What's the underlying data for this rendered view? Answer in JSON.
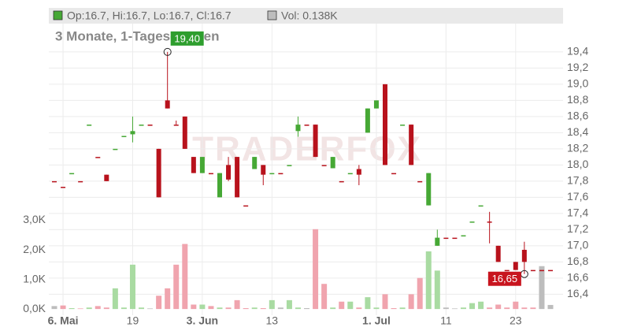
{
  "chart_data": {
    "type": "candlestick",
    "title": "3 Monate, 1-Tages-Kerzen",
    "ohlc_text": "Op:16.7, Hi:16.7, Lo:16.7, Cl:16.7",
    "volume_text": "Vol: 0.138K",
    "watermark": "TRADERFOX",
    "categories": [
      null,
      "6. Mai",
      null,
      null,
      null,
      null,
      null,
      null,
      null,
      "19",
      null,
      null,
      null,
      null,
      null,
      null,
      null,
      "3. Jun",
      null,
      null,
      null,
      null,
      null,
      null,
      null,
      "13",
      null,
      null,
      null,
      null,
      null,
      null,
      null,
      null,
      null,
      null,
      null,
      "1. Jul",
      null,
      null,
      null,
      null,
      null,
      null,
      null,
      "11",
      null,
      null,
      null,
      null,
      null,
      null,
      null,
      "23",
      null,
      null,
      null,
      null
    ],
    "open": [
      17.8,
      17.73,
      17.9,
      17.8,
      18.5,
      18.1,
      17.88,
      18.2,
      18.36,
      18.38,
      18.5,
      18.5,
      18.2,
      18.8,
      18.5,
      18.6,
      18.1,
      17.9,
      17.9,
      17.6,
      18.0,
      18.1,
      17.5,
      17.95,
      18.0,
      17.9,
      17.9,
      18.0,
      18.42,
      18.5,
      18.5,
      18.0,
      17.96,
      17.8,
      17.9,
      17.95,
      18.4,
      18.7,
      19.0,
      17.9,
      18.5,
      18.5,
      17.8,
      17.5,
      17.0,
      17.1,
      17.1,
      17.13,
      17.3,
      17.5,
      17.3,
      17.0,
      16.7,
      16.8,
      16.95,
      16.7,
      16.7,
      16.7
    ],
    "high": [
      17.8,
      17.73,
      17.9,
      17.8,
      18.5,
      18.1,
      17.88,
      18.2,
      18.36,
      18.6,
      18.5,
      18.5,
      18.2,
      19.4,
      18.55,
      18.6,
      18.1,
      18.1,
      17.9,
      17.9,
      18.1,
      18.1,
      17.5,
      18.1,
      18.0,
      17.9,
      17.9,
      18.0,
      18.6,
      18.5,
      18.5,
      18.0,
      18.1,
      17.8,
      17.9,
      18.0,
      18.7,
      18.8,
      19.0,
      17.9,
      18.5,
      18.5,
      17.8,
      17.9,
      17.2,
      17.1,
      17.1,
      17.13,
      17.3,
      17.5,
      17.42,
      17.0,
      16.7,
      16.8,
      17.05,
      16.7,
      16.7,
      16.7
    ],
    "low": [
      17.8,
      17.73,
      17.9,
      17.8,
      18.5,
      18.1,
      17.8,
      18.2,
      18.36,
      18.28,
      18.5,
      18.5,
      17.6,
      18.7,
      18.5,
      18.2,
      17.9,
      17.9,
      17.9,
      17.6,
      17.8,
      17.6,
      17.5,
      17.95,
      17.75,
      17.9,
      17.9,
      18.0,
      18.35,
      18.5,
      18.1,
      18.0,
      17.96,
      17.8,
      17.9,
      17.75,
      18.4,
      18.7,
      18.0,
      17.9,
      18.5,
      18.0,
      17.8,
      17.5,
      17.0,
      17.1,
      17.1,
      17.13,
      17.3,
      17.5,
      17.03,
      16.8,
      16.7,
      16.7,
      16.65,
      16.7,
      16.7,
      16.7
    ],
    "close": [
      17.8,
      17.73,
      17.9,
      17.8,
      18.5,
      18.1,
      17.8,
      18.2,
      18.36,
      18.42,
      18.5,
      18.5,
      17.6,
      18.7,
      18.5,
      18.2,
      17.9,
      18.1,
      17.9,
      17.9,
      17.82,
      17.6,
      17.5,
      18.1,
      17.88,
      17.9,
      17.9,
      18.0,
      18.5,
      18.5,
      18.1,
      18.0,
      18.1,
      17.8,
      17.9,
      17.88,
      18.7,
      18.8,
      18.0,
      17.9,
      18.5,
      18.0,
      17.8,
      17.9,
      17.1,
      17.1,
      17.1,
      17.13,
      17.3,
      17.5,
      17.3,
      16.8,
      16.7,
      16.7,
      16.8,
      16.7,
      16.7,
      16.7
    ],
    "volume": [
      0.1,
      0.12,
      0.03,
      0.02,
      0.05,
      0.1,
      0.05,
      0.7,
      0.05,
      1.5,
      0.05,
      0.02,
      0.45,
      0.7,
      1.5,
      2.2,
      0.15,
      0.15,
      0.1,
      0.05,
      0.05,
      0.3,
      0.03,
      0.05,
      0.03,
      0.3,
      0.05,
      0.3,
      0.05,
      0.03,
      2.7,
      0.85,
      0.05,
      0.25,
      0.25,
      0.05,
      0.4,
      0.05,
      0.5,
      0.03,
      0.05,
      0.5,
      1.05,
      1.95,
      1.3,
      0.05,
      0.02,
      0.05,
      0.2,
      0.25,
      0.05,
      0.15,
      0.05,
      0.25,
      0.05,
      0.05,
      1.45,
      0.138
    ],
    "ylim": [
      16.14,
      19.75
    ],
    "yticks": [
      {
        "value": 16.4,
        "label": "16,4"
      },
      {
        "value": 16.6,
        "label": "16,6"
      },
      {
        "value": 16.8,
        "label": "16,8"
      },
      {
        "value": 17.0,
        "label": "17,0"
      },
      {
        "value": 17.2,
        "label": "17,2"
      },
      {
        "value": 17.4,
        "label": "17,4"
      },
      {
        "value": 17.6,
        "label": "17,6"
      },
      {
        "value": 17.8,
        "label": "17,8"
      },
      {
        "value": 18.0,
        "label": "18,0"
      },
      {
        "value": 18.2,
        "label": "18,2"
      },
      {
        "value": 18.4,
        "label": "18,4"
      },
      {
        "value": 18.6,
        "label": "18,6"
      },
      {
        "value": 18.8,
        "label": "18,8"
      },
      {
        "value": 19.0,
        "label": "19,0"
      },
      {
        "value": 19.2,
        "label": "19,2"
      },
      {
        "value": 19.4,
        "label": "19,4"
      }
    ],
    "y2lim": [
      -0.21,
      9.65
    ],
    "y2ticks": [
      {
        "value": 0,
        "label": "0,0K"
      },
      {
        "value": 1,
        "label": "1,0K"
      },
      {
        "value": 2,
        "label": "2,0K"
      },
      {
        "value": 3,
        "label": "3,0K"
      }
    ],
    "annotations": [
      {
        "label": "19,40",
        "value": 19.4,
        "color": "#2e9e2e"
      },
      {
        "label": "16,65",
        "value": 16.65,
        "color": "#c8141e"
      }
    ],
    "grid": true,
    "up_color": "#46a835",
    "down_color": "#b8121c",
    "volume_up_color": "#a9dba2",
    "volume_down_color": "#f0a4ae",
    "volume_flat_color": "#bdbdbd"
  }
}
